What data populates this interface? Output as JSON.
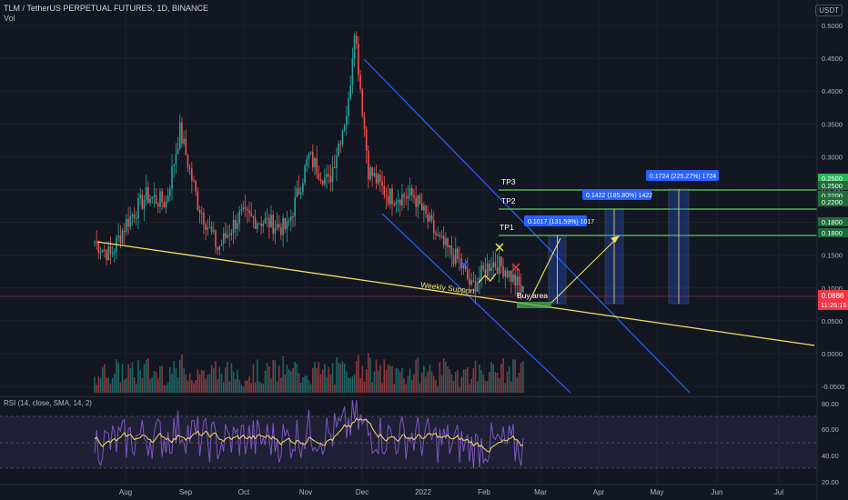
{
  "header": {
    "title": "TLM / TetherUS PERPETUAL FUTURES, 1D, BINANCE",
    "vol_label": "Vol",
    "currency_badge": "USDT"
  },
  "price_axis": {
    "ticks": [
      "0.5000",
      "0.4500",
      "0.4000",
      "0.3500",
      "0.3000",
      "0.2500",
      "0.2000",
      "0.1500",
      "0.1000",
      "0.0500",
      "0.0000",
      "-0.0500"
    ],
    "tp_tags": [
      {
        "value": "0.2500",
        "bg": "#2db45d"
      },
      {
        "value": "0.2500",
        "bg": "#1f6e3a"
      },
      {
        "value": "0.2200",
        "bg": "#1f6e3a"
      },
      {
        "value": "0.2200",
        "bg": "#1f6e3a"
      },
      {
        "value": "0.1800",
        "bg": "#1f6e3a"
      },
      {
        "value": "0.1800",
        "bg": "#1f6e3a"
      }
    ],
    "current_price": "0.0886",
    "countdown": "11:25:15"
  },
  "time_axis": {
    "labels": [
      "Aug",
      "Sep",
      "Oct",
      "Nov",
      "Dec",
      "2022",
      "Feb",
      "Mar",
      "Apr",
      "May",
      "Jun",
      "Jul"
    ]
  },
  "rsi": {
    "label": "RSI (14, close, SMA, 14, 2)",
    "ticks": [
      "80.00",
      "60.00",
      "40.00",
      "20.00"
    ]
  },
  "annotations": {
    "tp_labels": [
      "TP3",
      "TP2",
      "TP1"
    ],
    "target_boxes": [
      "0.1017 (131.59%) 1017",
      "0.1422 (185.80%) 1422",
      "0.1724 (225.27%) 1724"
    ],
    "weekly_support": "Weekly Support",
    "buy_area": "Buy area"
  },
  "chart_data": {
    "type": "candlestick",
    "title": "TLM / TetherUS PERPETUAL FUTURES, 1D, BINANCE",
    "ylim": [
      -0.05,
      0.52
    ],
    "close_series_approx": [
      {
        "x": "2021-07-20",
        "y": 0.17
      },
      {
        "x": "2021-07-28",
        "y": 0.15
      },
      {
        "x": "2021-08-05",
        "y": 0.2
      },
      {
        "x": "2021-08-15",
        "y": 0.24
      },
      {
        "x": "2021-08-25",
        "y": 0.23
      },
      {
        "x": "2021-09-01",
        "y": 0.34
      },
      {
        "x": "2021-09-10",
        "y": 0.23
      },
      {
        "x": "2021-09-20",
        "y": 0.16
      },
      {
        "x": "2021-10-01",
        "y": 0.21
      },
      {
        "x": "2021-10-15",
        "y": 0.2
      },
      {
        "x": "2021-10-25",
        "y": 0.19
      },
      {
        "x": "2021-11-05",
        "y": 0.3
      },
      {
        "x": "2021-11-15",
        "y": 0.26
      },
      {
        "x": "2021-11-25",
        "y": 0.38
      },
      {
        "x": "2021-11-28",
        "y": 0.5
      },
      {
        "x": "2021-12-05",
        "y": 0.28
      },
      {
        "x": "2021-12-15",
        "y": 0.24
      },
      {
        "x": "2021-12-28",
        "y": 0.24
      },
      {
        "x": "2022-01-10",
        "y": 0.17
      },
      {
        "x": "2022-01-20",
        "y": 0.14
      },
      {
        "x": "2022-01-26",
        "y": 0.1
      },
      {
        "x": "2022-02-05",
        "y": 0.14
      },
      {
        "x": "2022-02-12",
        "y": 0.13
      },
      {
        "x": "2022-02-22",
        "y": 0.0886
      }
    ],
    "levels": {
      "TP1": 0.18,
      "TP2": 0.22,
      "TP3": 0.25,
      "current": 0.0886
    },
    "rsi_ticks": [
      80,
      60,
      40,
      20
    ]
  }
}
